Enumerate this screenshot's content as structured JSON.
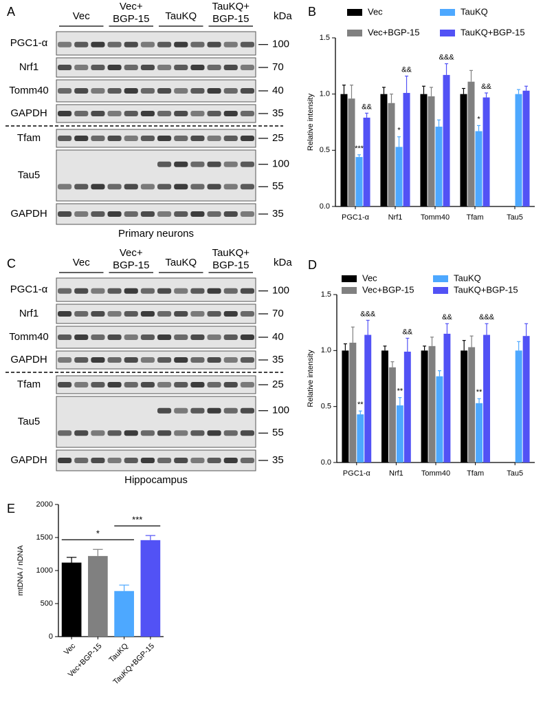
{
  "panels": [
    "A",
    "B",
    "C",
    "D",
    "E"
  ],
  "blots": [
    {
      "groups": [
        [
          "Vec"
        ],
        [
          "Vec+",
          "BGP-15"
        ],
        [
          "TauKQ"
        ],
        [
          "TauKQ+",
          "BGP-15"
        ]
      ],
      "unit": "kDa",
      "rows": [
        {
          "label": "PGC1-α",
          "markers": [
            100
          ]
        },
        {
          "label": "Nrf1",
          "markers": [
            70
          ]
        },
        {
          "label": "Tomm40",
          "markers": [
            40
          ]
        },
        {
          "label": "GAPDH",
          "markers": [
            35
          ]
        },
        {
          "label": "Tfam",
          "markers": [
            25
          ]
        },
        {
          "label": "Tau5",
          "markers": [
            100,
            55
          ]
        },
        {
          "label": "GAPDH",
          "markers": [
            35
          ]
        }
      ],
      "caption": "Primary neurons"
    },
    {
      "groups": [
        [
          "Vec"
        ],
        [
          "Vec+",
          "BGP-15"
        ],
        [
          "TauKQ"
        ],
        [
          "TauKQ+",
          "BGP-15"
        ]
      ],
      "unit": "kDa",
      "rows": [
        {
          "label": "PGC1-α",
          "markers": [
            100
          ]
        },
        {
          "label": "Nrf1",
          "markers": [
            70
          ]
        },
        {
          "label": "Tomm40",
          "markers": [
            40
          ]
        },
        {
          "label": "GAPDH",
          "markers": [
            35
          ]
        },
        {
          "label": "Tfam",
          "markers": [
            25
          ]
        },
        {
          "label": "Tau5",
          "markers": [
            100,
            55
          ]
        },
        {
          "label": "GAPDH",
          "markers": [
            35
          ]
        }
      ],
      "caption": "Hippocampus"
    }
  ],
  "chart_data": [
    {
      "type": "bar",
      "y_label": "Relative intensity",
      "categories": [
        "PGC1-α",
        "Nrf1",
        "Tomm40",
        "Tfam",
        "Tau5"
      ],
      "ylim": [
        0,
        1.5
      ],
      "yticks": [
        {
          "value": 0,
          "label": "0.0"
        },
        0.5,
        {
          "value": 1,
          "label": "1.0"
        },
        1.5
      ],
      "significance_color": "#3a9bff",
      "series": [
        {
          "name": "Vec",
          "color": "#000000",
          "values": [
            1.0,
            1.0,
            1.0,
            1.0,
            null
          ],
          "errors": [
            0.08,
            0.06,
            0.07,
            0.05,
            null
          ]
        },
        {
          "name": "Vec+BGP-15",
          "color": "#808080",
          "values": [
            0.96,
            0.92,
            0.98,
            1.11,
            null
          ],
          "errors": [
            0.12,
            0.08,
            0.08,
            0.1,
            null
          ]
        },
        {
          "name": "TauKQ",
          "color": "#4da8ff",
          "values": [
            0.44,
            0.53,
            0.71,
            0.67,
            1.0
          ],
          "errors": [
            0.02,
            0.09,
            0.06,
            0.05,
            0.04
          ],
          "significance": [
            "***",
            "*",
            null,
            "*",
            null
          ]
        },
        {
          "name": "TauKQ+BGP-15",
          "color": "#5252f5",
          "values": [
            0.79,
            1.01,
            1.17,
            0.97,
            1.03
          ],
          "errors": [
            0.04,
            0.15,
            0.1,
            0.04,
            0.04
          ],
          "significance": [
            "&&",
            "&&",
            "&&&",
            "&&",
            null
          ]
        }
      ]
    },
    {
      "type": "bar",
      "y_label": "Relative intensity",
      "categories": [
        "PGC1-α",
        "Nrf1",
        "Tomm40",
        "Tfam",
        "Tau5"
      ],
      "ylim": [
        0,
        1.5
      ],
      "yticks": [
        {
          "value": 0,
          "label": "0.0"
        },
        0.5,
        {
          "value": 1,
          "label": "1.0"
        },
        1.5
      ],
      "significance_color": "#3a9bff",
      "series": [
        {
          "name": "Vec",
          "color": "#000000",
          "values": [
            1.0,
            1.0,
            1.0,
            1.0,
            null
          ],
          "errors": [
            0.06,
            0.04,
            0.04,
            0.09,
            null
          ]
        },
        {
          "name": "Vec+BGP-15",
          "color": "#808080",
          "values": [
            1.07,
            0.85,
            1.04,
            1.03,
            null
          ],
          "errors": [
            0.14,
            0.05,
            0.08,
            0.1,
            null
          ]
        },
        {
          "name": "TauKQ",
          "color": "#4da8ff",
          "values": [
            0.43,
            0.51,
            0.77,
            0.53,
            1.0
          ],
          "errors": [
            0.03,
            0.07,
            0.05,
            0.04,
            0.08
          ],
          "significance": [
            "**",
            "**",
            null,
            "**",
            null
          ]
        },
        {
          "name": "TauKQ+BGP-15",
          "color": "#5252f5",
          "values": [
            1.14,
            0.99,
            1.15,
            1.14,
            1.13
          ],
          "errors": [
            0.13,
            0.12,
            0.09,
            0.1,
            0.11
          ],
          "significance": [
            "&&&",
            "&&",
            "&&",
            "&&&",
            null
          ]
        }
      ]
    },
    {
      "type": "bar",
      "y_label": "mtDNA / nDNA",
      "categories": [
        "Vec",
        "Vec+BGP-15",
        "TauKQ",
        "TauKQ+BGP-15"
      ],
      "values": [
        1120,
        1220,
        690,
        1460
      ],
      "errors": [
        80,
        100,
        90,
        70
      ],
      "colors": [
        "#000000",
        "#808080",
        "#4da8ff",
        "#5252f5"
      ],
      "ylim": [
        0,
        2000
      ],
      "yticks": [
        0,
        500,
        1000,
        1500,
        2000
      ],
      "comparisons": [
        {
          "text": "*",
          "from": "Vec",
          "to": "TauKQ"
        },
        {
          "text": "***",
          "from": "TauKQ",
          "to": "TauKQ+BGP-15"
        }
      ]
    }
  ]
}
